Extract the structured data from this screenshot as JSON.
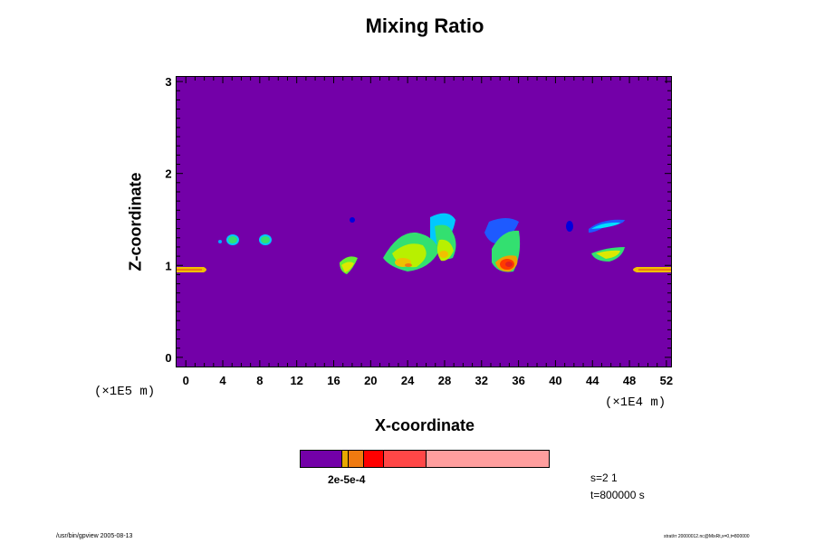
{
  "title": "Mixing Ratio",
  "chart_data": {
    "type": "heatmap",
    "title": "Mixing Ratio",
    "xlabel": "X-coordinate",
    "ylabel": "Z-coordinate",
    "x_scale_note": "(×1E4 m)",
    "y_scale_note": "(×1E5 m)",
    "xlim": [
      -1,
      52.5
    ],
    "ylim": [
      -0.1,
      3.05
    ],
    "x_ticks": [
      "0",
      "4",
      "8",
      "12",
      "16",
      "20",
      "24",
      "28",
      "32",
      "36",
      "40",
      "44",
      "48",
      "52"
    ],
    "y_ticks": [
      "0",
      "1",
      "2",
      "3"
    ],
    "background_color": "#7300a8",
    "colorbar": {
      "label": "2e-5e-4",
      "colors": [
        "#7300a8",
        "#e8a800",
        "#f07a10",
        "#ff0000",
        "#ff4747",
        "#ff9e9e"
      ]
    },
    "features": [
      {
        "level": "blue",
        "x": 4.2,
        "z": 1.25
      },
      {
        "level": "green",
        "x": 5.0,
        "z": 1.28
      },
      {
        "level": "green",
        "x": 8.4,
        "z": 1.28
      },
      {
        "level": "blue",
        "x": 17.7,
        "z": 1.48
      },
      {
        "level": "yellow",
        "x": 17.2,
        "z": 0.98
      },
      {
        "level": "green",
        "x": 22.5,
        "z": 1.12
      },
      {
        "level": "yellow",
        "x": 23.5,
        "z": 1.05
      },
      {
        "level": "orange",
        "x": 23.8,
        "z": 1.02
      },
      {
        "level": "cyan",
        "x": 27.5,
        "z": 1.5
      },
      {
        "level": "green",
        "x": 27.0,
        "z": 1.25
      },
      {
        "level": "yellow",
        "x": 28.0,
        "z": 1.15
      },
      {
        "level": "blue",
        "x": 35.0,
        "z": 1.47
      },
      {
        "level": "green",
        "x": 34.5,
        "z": 1.2
      },
      {
        "level": "red",
        "x": 35.0,
        "z": 1.0
      },
      {
        "level": "blue",
        "x": 41.3,
        "z": 1.43
      },
      {
        "level": "cyan",
        "x": 45.5,
        "z": 1.45
      },
      {
        "level": "green",
        "x": 45.8,
        "z": 1.14
      },
      {
        "level": "yellow",
        "x": 0.6,
        "z": 0.95
      },
      {
        "level": "yellow",
        "x": 50.5,
        "z": 0.95
      }
    ]
  },
  "info": {
    "s": "s=2 1",
    "t": "t=800000 s"
  },
  "footer_left": "/usr/bin/gpview 2005-08-13",
  "footer_right": "strat/rr 20000012.nc@MixRt,x=0,t=800000"
}
